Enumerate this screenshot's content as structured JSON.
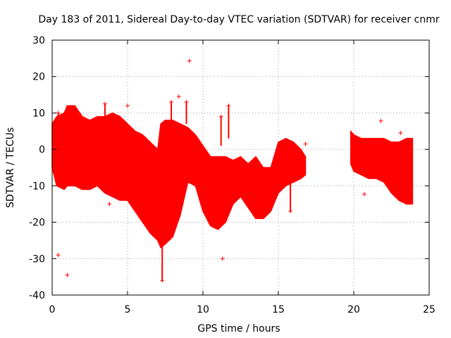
{
  "chart_data": {
    "type": "scatter",
    "title": "Day 183 of 2011, Sidereal Day-to-day VTEC variation (SDTVAR) for receiver cnmr",
    "xlabel": "GPS time / hours",
    "ylabel": "SDTVAR / TECUs",
    "xlim": [
      0,
      25
    ],
    "ylim": [
      -40,
      30
    ],
    "x_ticks": [
      0,
      5,
      10,
      15,
      20,
      25
    ],
    "x_tick_labels": [
      "0",
      "5",
      "10",
      "15",
      "20",
      "25"
    ],
    "y_ticks": [
      -40,
      -30,
      -20,
      -10,
      0,
      10,
      20,
      30
    ],
    "y_tick_labels": [
      "-40",
      "-30",
      "-20",
      "-10",
      "0",
      "10",
      "20",
      "30"
    ],
    "grid": true,
    "colors": {
      "series": "#ff0000",
      "grid": "#a0a0a0",
      "axes": "#000000"
    },
    "series": [
      {
        "name": "SDTVAR",
        "marker": "+",
        "envelope": {
          "x": [
            0.0,
            0.3,
            0.8,
            1.0,
            1.5,
            2.0,
            2.5,
            3.0,
            3.5,
            4.0,
            4.5,
            5.0,
            5.5,
            6.0,
            6.5,
            7.0,
            7.2,
            7.5,
            8.0,
            8.5,
            9.0,
            9.5,
            10.0,
            10.5,
            11.0,
            11.5,
            12.0,
            12.5,
            13.0,
            13.5,
            14.0,
            14.5,
            15.0,
            15.5,
            16.0,
            16.5,
            16.8
          ],
          "upper": [
            7,
            9,
            10,
            12,
            12,
            9,
            8,
            9,
            9,
            10,
            9,
            7,
            5,
            4,
            2,
            0,
            7,
            8,
            8,
            7,
            6,
            4,
            1,
            -2,
            -2,
            -2,
            -3,
            -2,
            -4,
            -2,
            -5,
            -5,
            2,
            3,
            2,
            0,
            -2
          ],
          "lower": [
            -5,
            -10,
            -11,
            -10,
            -10,
            -11,
            -11,
            -10,
            -12,
            -13,
            -14,
            -14,
            -17,
            -20,
            -23,
            -25,
            -27,
            -26,
            -24,
            -18,
            -9,
            -10,
            -17,
            -21,
            -22,
            -20,
            -15,
            -13,
            -16,
            -19,
            -19,
            -17,
            -12,
            -10,
            -9,
            -8,
            -7
          ]
        },
        "envelope_2": {
          "x": [
            19.8,
            20.0,
            20.5,
            21.0,
            21.5,
            22.0,
            22.5,
            23.0,
            23.5,
            23.9
          ],
          "upper": [
            5,
            4,
            3,
            3,
            3,
            3,
            2,
            2,
            3,
            3
          ],
          "lower": [
            -4,
            -6,
            -7,
            -8,
            -8,
            -9,
            -12,
            -14,
            -15,
            -15
          ]
        },
        "spikes": [
          {
            "x": 0.4,
            "y0": 2,
            "y1": 10
          },
          {
            "x": 3.5,
            "y0": 8,
            "y1": 12.5
          },
          {
            "x": 7.3,
            "y0": -25,
            "y1": -36
          },
          {
            "x": 7.9,
            "y0": 7,
            "y1": 13
          },
          {
            "x": 8.9,
            "y0": 7,
            "y1": 13
          },
          {
            "x": 11.2,
            "y0": 1,
            "y1": 9
          },
          {
            "x": 11.7,
            "y0": 3,
            "y1": 12
          },
          {
            "x": 15.8,
            "y0": -9,
            "y1": -17
          }
        ],
        "outliers": [
          {
            "x": 9.1,
            "y": 24.3
          },
          {
            "x": 0.4,
            "y": -29
          },
          {
            "x": 1.0,
            "y": -34.5
          },
          {
            "x": 11.3,
            "y": -30
          },
          {
            "x": 3.8,
            "y": -15
          },
          {
            "x": 5.0,
            "y": 12
          },
          {
            "x": 16.8,
            "y": 1.5
          },
          {
            "x": 21.8,
            "y": 7.8
          },
          {
            "x": 23.1,
            "y": 4.5
          },
          {
            "x": 20.7,
            "y": -12.3
          },
          {
            "x": 8.4,
            "y": 14.5
          }
        ]
      }
    ]
  }
}
